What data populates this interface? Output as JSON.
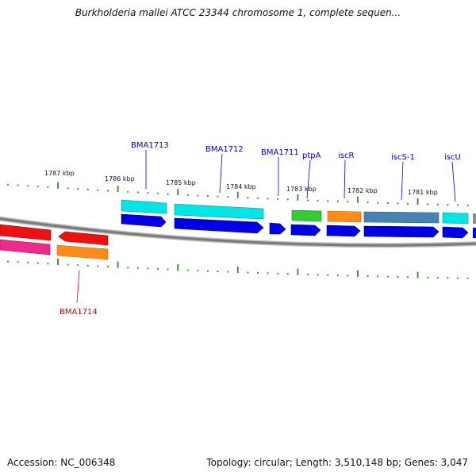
{
  "title": "Burkholderia mallei ATCC 23344 chromosome 1, complete sequen...",
  "footer": {
    "accession": "Accession: NC_006348",
    "topology": "Topology: circular; Length: 3,510,148 bp; Genes: 3,047"
  },
  "colors": {
    "backbone": "#8a8a8a",
    "tick": "#2e8b2e",
    "label_top": "#0000cc",
    "label_bottom": "#cc0000",
    "cds": "#0000e6",
    "rna_cyan": "#00e5e5",
    "green": "#33cc33",
    "orange": "#ff8c1a",
    "steel": "#4682b4",
    "red": "#ee1111",
    "pink": "#ee2a8a",
    "grey": "#8c8c8c"
  },
  "kbp_labels": [
    "1787 kbp",
    "1786 kbp",
    "1785 kbp",
    "1784 kbp",
    "1783 kbp",
    "1782 kbp",
    "1781 kbp"
  ],
  "gene_labels": [
    "BMA1713",
    "BMA1712",
    "BMA1711",
    "ptpA",
    "iscR",
    "iscS-1",
    "iscU",
    "BMA1714"
  ]
}
